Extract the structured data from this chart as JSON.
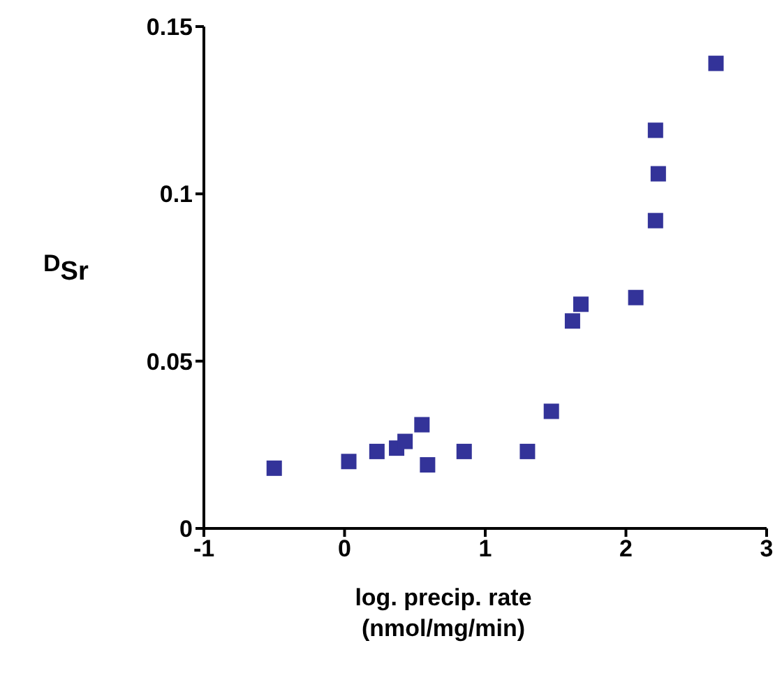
{
  "chart_data": {
    "type": "scatter",
    "xlabel": "log. precip. rate\n(nmol/mg/min)",
    "ylabel": "D$_{Sr}$",
    "marker": "square",
    "grid": false,
    "xlim": [
      -1,
      3
    ],
    "xticks": [
      -1,
      0,
      1,
      2,
      3
    ],
    "ylim": [
      0,
      0.15
    ],
    "yticks": [
      0,
      0.05,
      0.1,
      0.15
    ],
    "x": [
      -0.5,
      0.03,
      0.23,
      0.37,
      0.43,
      0.55,
      0.59,
      0.85,
      1.3,
      1.47,
      1.62,
      1.68,
      2.07,
      2.21,
      2.23,
      2.21,
      2.64
    ],
    "series": [
      {
        "color": "#333399",
        "values": [
          0.018,
          0.02,
          0.023,
          0.024,
          0.026,
          0.031,
          0.019,
          0.023,
          0.023,
          0.035,
          0.062,
          0.067,
          0.069,
          0.092,
          0.106,
          0.119,
          0.139
        ]
      }
    ]
  }
}
